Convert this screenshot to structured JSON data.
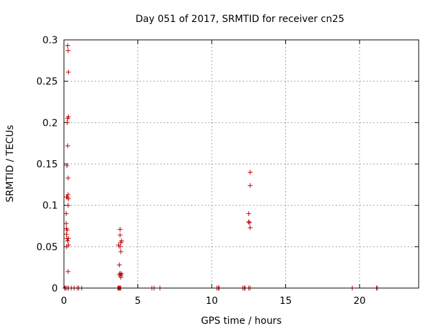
{
  "chart_data": {
    "type": "scatter",
    "title": "Day 051 of 2017, SRMTID for receiver cn25",
    "xlabel": "GPS time / hours",
    "ylabel": "SRMTID / TECUs",
    "xlim": [
      0,
      24
    ],
    "ylim": [
      0,
      0.3
    ],
    "xticks": [
      0,
      5,
      10,
      15,
      20
    ],
    "yticks": [
      0,
      0.05,
      0.1,
      0.15,
      0.2,
      0.25,
      0.3
    ],
    "xtick_labels": [
      "0",
      "5",
      "10",
      "15",
      "20"
    ],
    "ytick_labels": [
      "0",
      "0.05",
      "0.1",
      "0.15",
      "0.2",
      "0.25",
      "0.3"
    ],
    "grid": true,
    "marker": "+",
    "color": "#c00000",
    "points": [
      [
        0.15,
        0.09
      ],
      [
        0.15,
        0.078
      ],
      [
        0.17,
        0.072
      ],
      [
        0.17,
        0.065
      ],
      [
        0.18,
        0.11
      ],
      [
        0.18,
        0.05
      ],
      [
        0.2,
        0.148
      ],
      [
        0.2,
        0.06
      ],
      [
        0.22,
        0.2
      ],
      [
        0.22,
        0.11
      ],
      [
        0.22,
        0.07
      ],
      [
        0.25,
        0.293
      ],
      [
        0.25,
        0.172
      ],
      [
        0.25,
        0.205
      ],
      [
        0.25,
        0.057
      ],
      [
        0.28,
        0.287
      ],
      [
        0.28,
        0.133
      ],
      [
        0.28,
        0.113
      ],
      [
        0.28,
        0.1
      ],
      [
        0.28,
        0.02
      ],
      [
        0.3,
        0.261
      ],
      [
        0.3,
        0.207
      ],
      [
        0.3,
        0.108
      ],
      [
        0.3,
        0.06
      ],
      [
        0.3,
        0.052
      ],
      [
        3.7,
        0.052
      ],
      [
        3.75,
        0.016
      ],
      [
        3.75,
        0.028
      ],
      [
        3.8,
        0.071
      ],
      [
        3.8,
        0.064
      ],
      [
        3.8,
        0.05
      ],
      [
        3.8,
        0.018
      ],
      [
        3.85,
        0.015
      ],
      [
        3.85,
        0.013
      ],
      [
        3.85,
        0.055
      ],
      [
        3.85,
        0.044
      ],
      [
        3.9,
        0.057
      ],
      [
        3.9,
        0.017
      ],
      [
        12.5,
        0.09
      ],
      [
        12.5,
        0.08
      ],
      [
        12.55,
        0.079
      ],
      [
        12.6,
        0.14
      ],
      [
        12.6,
        0.124
      ],
      [
        12.6,
        0.073
      ],
      [
        0.05,
        0
      ],
      [
        0.1,
        0
      ],
      [
        0.2,
        0
      ],
      [
        0.3,
        0
      ],
      [
        0.5,
        0
      ],
      [
        0.7,
        0
      ],
      [
        0.9,
        0
      ],
      [
        1.0,
        0
      ],
      [
        1.2,
        0
      ],
      [
        3.65,
        0
      ],
      [
        3.7,
        0
      ],
      [
        3.75,
        0
      ],
      [
        3.8,
        0
      ],
      [
        3.85,
        0
      ],
      [
        5.95,
        0
      ],
      [
        6.1,
        0
      ],
      [
        6.5,
        0
      ],
      [
        10.35,
        0
      ],
      [
        10.45,
        0
      ],
      [
        10.5,
        0
      ],
      [
        12.1,
        0
      ],
      [
        12.2,
        0
      ],
      [
        12.25,
        0
      ],
      [
        12.5,
        0
      ],
      [
        12.6,
        0
      ],
      [
        19.5,
        0
      ],
      [
        21.15,
        0
      ],
      [
        21.2,
        0
      ]
    ]
  }
}
